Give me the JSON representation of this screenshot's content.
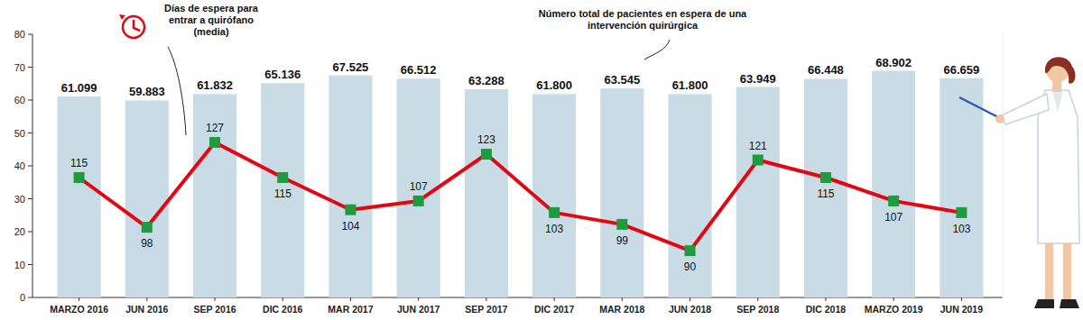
{
  "chart_data": {
    "type": "bar",
    "categories": [
      "MARZO 2016",
      "JUN 2016",
      "SEP 2016",
      "DIC 2016",
      "MAR 2017",
      "JUN 2017",
      "SEP 2017",
      "DIC 2017",
      "MAR 2018",
      "JUN 2018",
      "SEP 2018",
      "DIC 2018",
      "MARZO 2019",
      "JUN 2019"
    ],
    "series": [
      {
        "name": "Número total de pacientes en espera de una intervención quirúrgica",
        "type": "bar",
        "color": "#c9dce6",
        "values": [
          61.099,
          59.883,
          61.832,
          65.136,
          67.525,
          66.512,
          63.288,
          61.8,
          63.545,
          61.8,
          63.949,
          66.448,
          68.902,
          66.659
        ],
        "value_labels": [
          "61.099",
          "59.883",
          "61.832",
          "65.136",
          "67.525",
          "66.512",
          "63.288",
          "61.800",
          "63.545",
          "61.800",
          "63.949",
          "66.448",
          "68.902",
          "66.659"
        ]
      },
      {
        "name": "Días de espera para entrar a quirófano (media)",
        "type": "line",
        "color": "#e30613",
        "marker": "square",
        "axis": "y2",
        "values": [
          115,
          98,
          127,
          115,
          104,
          107,
          123,
          103,
          99,
          90,
          121,
          115,
          107,
          103
        ]
      }
    ],
    "ylim": [
      0,
      80
    ],
    "yticks": [
      0,
      10,
      20,
      30,
      40,
      50,
      60,
      70,
      80
    ],
    "y2lim": [
      74,
      164
    ],
    "data_labels": true,
    "grid": false
  }
}
